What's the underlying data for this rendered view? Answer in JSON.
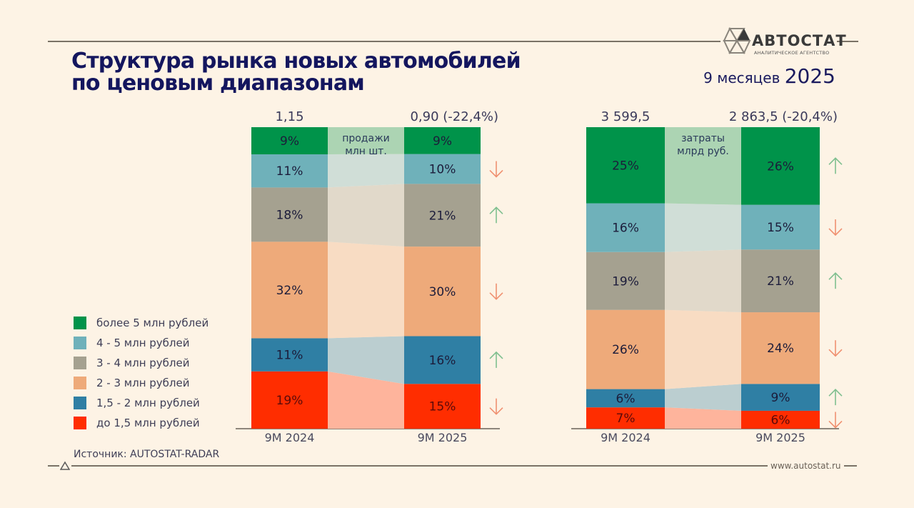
{
  "header": {
    "title_line1": "Структура рынка новых автомобилей",
    "title_line2": "по ценовым диапазонам",
    "period_prefix": "9 месяцев",
    "period_year": "2025",
    "brand_name": "АВТОСТАТ",
    "brand_tagline": "АНАЛИТИЧЕСКОЕ АГЕНТСТВО",
    "logo_icon": "autostat-hexagon-logo-icon"
  },
  "footer": {
    "source": "Источник: AUTOSTAT-RADAR",
    "site": "www.autostat.ru",
    "footer_icon": "triangle-icon"
  },
  "legend": [
    {
      "label": "более 5 млн рублей",
      "color": "#00934a"
    },
    {
      "label": "4 - 5 млн рублей",
      "color": "#6fb1ba"
    },
    {
      "label": "3 - 4 млн рублей",
      "color": "#a5a190"
    },
    {
      "label": "2 - 3 млн рублей",
      "color": "#eeaa7a"
    },
    {
      "label": "1,5 - 2 млн рублей",
      "color": "#2f7fa4"
    },
    {
      "label": "до 1,5 млн рублей",
      "color": "#ff2d00"
    }
  ],
  "colors": {
    "arrow_up": "#7fbf8f",
    "arrow_down": "#f09070",
    "background": "#fdf3e5"
  },
  "chart_data": [
    {
      "type": "bar",
      "stacked": true,
      "normalized": true,
      "title": "продажи млн шт.",
      "categories": [
        "9M 2024",
        "9M 2025"
      ],
      "totals": [
        "1,15",
        "0,90 (-22,4%)"
      ],
      "series": [
        {
          "name": "до 1,5 млн рублей",
          "values": [
            19,
            15
          ],
          "labels": [
            "19%",
            "15%"
          ],
          "trend": "down"
        },
        {
          "name": "1,5 - 2 млн рублей",
          "values": [
            11,
            16
          ],
          "labels": [
            "11%",
            "16%"
          ],
          "trend": "up"
        },
        {
          "name": "2 - 3 млн рублей",
          "values": [
            32,
            30
          ],
          "labels": [
            "32%",
            "30%"
          ],
          "trend": "down"
        },
        {
          "name": "3 - 4 млн рублей",
          "values": [
            18,
            21
          ],
          "labels": [
            "18%",
            "21%"
          ],
          "trend": "up"
        },
        {
          "name": "4 - 5 млн рублей",
          "values": [
            11,
            10
          ],
          "labels": [
            "11%",
            "10%"
          ],
          "trend": "down"
        },
        {
          "name": "более 5 млн рублей",
          "values": [
            9,
            9
          ],
          "labels": [
            "9%",
            "9%"
          ],
          "trend": "none"
        }
      ],
      "ylim": [
        0,
        100
      ]
    },
    {
      "type": "bar",
      "stacked": true,
      "normalized": true,
      "title": "затраты млрд руб.",
      "categories": [
        "9M 2024",
        "9M 2025"
      ],
      "totals": [
        "3 599,5",
        "2 863,5 (-20,4%)"
      ],
      "series": [
        {
          "name": "до 1,5 млн рублей",
          "values": [
            7,
            6
          ],
          "labels": [
            "7%",
            "6%"
          ],
          "trend": "down"
        },
        {
          "name": "1,5 - 2 млн рублей",
          "values": [
            6,
            9
          ],
          "labels": [
            "6%",
            "9%"
          ],
          "trend": "up"
        },
        {
          "name": "2 - 3 млн рублей",
          "values": [
            26,
            24
          ],
          "labels": [
            "26%",
            "24%"
          ],
          "trend": "down"
        },
        {
          "name": "3 - 4 млн рублей",
          "values": [
            19,
            21
          ],
          "labels": [
            "19%",
            "21%"
          ],
          "trend": "up"
        },
        {
          "name": "4 - 5 млн рублей",
          "values": [
            16,
            15
          ],
          "labels": [
            "16%",
            "15%"
          ],
          "trend": "down"
        },
        {
          "name": "более 5 млн рублей",
          "values": [
            25,
            26
          ],
          "labels": [
            "25%",
            "26%"
          ],
          "trend": "up"
        }
      ],
      "ylim": [
        0,
        100
      ]
    }
  ]
}
